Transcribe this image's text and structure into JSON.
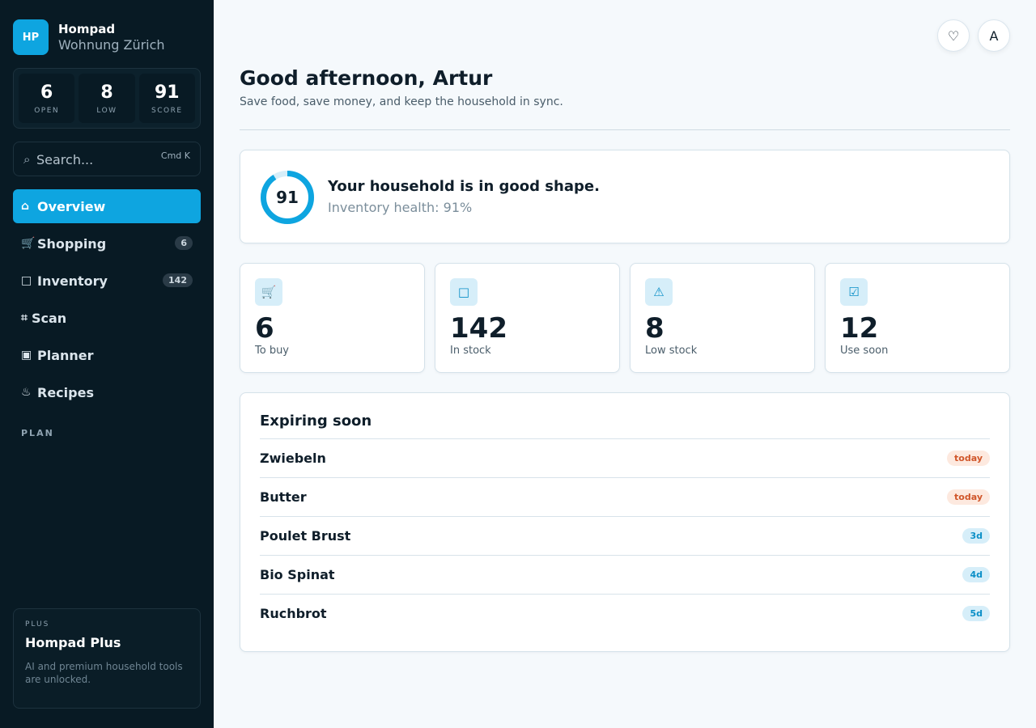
{
  "brand": {
    "logo": "HP",
    "name": "Hompad",
    "subtitle": "Wohnung Zürich"
  },
  "stats": [
    {
      "value": "6",
      "label": "OPEN"
    },
    {
      "value": "8",
      "label": "LOW"
    },
    {
      "value": "91",
      "label": "SCORE"
    }
  ],
  "search": {
    "placeholder": "Search...",
    "shortcut": "Cmd K",
    "icon": "⌕"
  },
  "nav": {
    "items": [
      {
        "icon": "⌂",
        "label": "Overview",
        "badge": ""
      },
      {
        "icon": "🛒",
        "label": "Shopping",
        "badge": "6"
      },
      {
        "icon": "□",
        "label": "Inventory",
        "badge": "142"
      },
      {
        "icon": "⌗",
        "label": "Scan",
        "badge": ""
      },
      {
        "icon": "▣",
        "label": "Planner",
        "badge": ""
      },
      {
        "icon": "♨",
        "label": "Recipes",
        "badge": ""
      }
    ],
    "active_index": 0,
    "section_label": "PLAN"
  },
  "plus": {
    "tag": "PLUS",
    "title": "Hompad Plus",
    "description": "AI and premium household tools are unlocked."
  },
  "header": {
    "favorite_icon": "♡",
    "avatar": "A",
    "greeting": "Good afternoon, Artur",
    "subtitle": "Save food, save money, and keep the household in sync."
  },
  "health": {
    "score": "91",
    "score_fraction": 0.91,
    "title": "Your household is in good shape.",
    "subtitle": "Inventory health: 91%",
    "accent": "#0ea5e0"
  },
  "kpis": [
    {
      "icon": "🛒",
      "value": "6",
      "label": "To buy"
    },
    {
      "icon": "□",
      "value": "142",
      "label": "In stock"
    },
    {
      "icon": "⚠",
      "value": "8",
      "label": "Low stock"
    },
    {
      "icon": "☑",
      "value": "12",
      "label": "Use soon"
    }
  ],
  "expiring": {
    "title": "Expiring soon",
    "items": [
      {
        "name": "Zwiebeln",
        "badge": "today",
        "urgent": true
      },
      {
        "name": "Butter",
        "badge": "today",
        "urgent": true
      },
      {
        "name": "Poulet Brust",
        "badge": "3d",
        "urgent": false
      },
      {
        "name": "Bio Spinat",
        "badge": "4d",
        "urgent": false
      },
      {
        "name": "Ruchbrot",
        "badge": "5d",
        "urgent": false
      }
    ]
  }
}
